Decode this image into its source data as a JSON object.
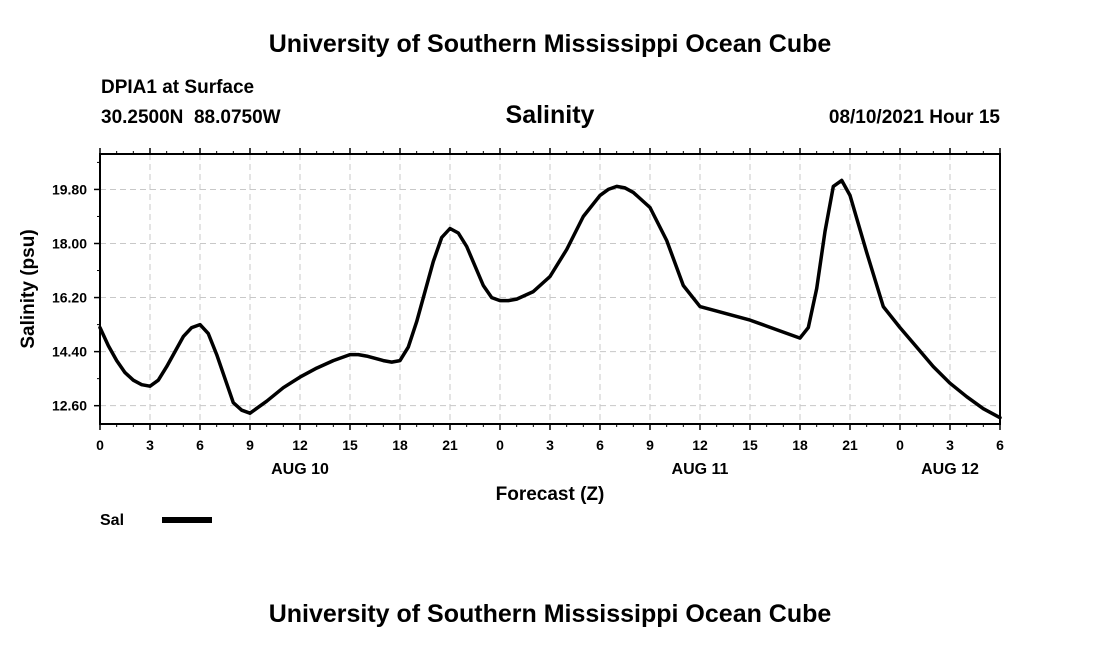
{
  "header": {
    "title": "University of Southern Mississippi Ocean Cube",
    "station": "DPIA1 at Surface",
    "coords": "30.2500N  88.0750W",
    "run_time": "08/10/2021 Hour 15"
  },
  "footer": {
    "title": "University of Southern Mississippi Ocean Cube"
  },
  "chart_data": {
    "type": "line",
    "title": "Salinity",
    "xlabel": "Forecast (Z)",
    "ylabel": "Salinity (psu)",
    "x_unit": "hours from 00Z AUG 10",
    "xlim": [
      0,
      54
    ],
    "ylim": [
      11.99,
      20.98
    ],
    "y_ticks": [
      12.6,
      14.4,
      16.2,
      18.0,
      19.8
    ],
    "y_tick_labels": [
      "12.60",
      "14.40",
      "16.20",
      "18.00",
      "19.80"
    ],
    "x_ticks": [
      0,
      3,
      6,
      9,
      12,
      15,
      18,
      21,
      24,
      27,
      30,
      33,
      36,
      39,
      42,
      45,
      48,
      51,
      54
    ],
    "x_tick_labels": [
      "0",
      "3",
      "6",
      "9",
      "12",
      "15",
      "18",
      "21",
      "0",
      "3",
      "6",
      "9",
      "12",
      "15",
      "18",
      "21",
      "0",
      "3",
      "6"
    ],
    "day_labels": [
      {
        "x": 12,
        "label": "AUG 10"
      },
      {
        "x": 36,
        "label": "AUG 11"
      },
      {
        "x": 51,
        "label": "AUG 12"
      }
    ],
    "grid": true,
    "line_color": "#000000",
    "series": [
      {
        "name": "Sal",
        "x": [
          0,
          0.5,
          1,
          1.5,
          2,
          2.5,
          3,
          3.5,
          4,
          5,
          5.5,
          6,
          6.5,
          7,
          8,
          8.5,
          9,
          10,
          11,
          12,
          13,
          14,
          15,
          15.5,
          16,
          17,
          17.5,
          18,
          18.5,
          19,
          20,
          20.5,
          21,
          21.5,
          22,
          23,
          23.5,
          24,
          24.5,
          25,
          26,
          27,
          28,
          29,
          30,
          30.5,
          31,
          31.5,
          32,
          33,
          34,
          35,
          36,
          37,
          38,
          39,
          40,
          41,
          42,
          42.5,
          43,
          43.5,
          44,
          44.5,
          45,
          46,
          47,
          48,
          49,
          50,
          51,
          52,
          53,
          54
        ],
        "y": [
          15.2,
          14.6,
          14.1,
          13.7,
          13.45,
          13.3,
          13.25,
          13.45,
          13.9,
          14.9,
          15.2,
          15.3,
          15.0,
          14.3,
          12.7,
          12.45,
          12.35,
          12.75,
          13.2,
          13.55,
          13.85,
          14.1,
          14.3,
          14.3,
          14.25,
          14.1,
          14.05,
          14.1,
          14.55,
          15.4,
          17.4,
          18.2,
          18.5,
          18.35,
          17.9,
          16.6,
          16.2,
          16.1,
          16.1,
          16.15,
          16.4,
          16.9,
          17.8,
          18.9,
          19.6,
          19.8,
          19.9,
          19.85,
          19.7,
          19.2,
          18.1,
          16.6,
          15.9,
          15.75,
          15.6,
          15.45,
          15.25,
          15.05,
          14.85,
          15.2,
          16.5,
          18.4,
          19.9,
          20.1,
          19.6,
          17.7,
          15.9,
          15.2,
          14.55,
          13.9,
          13.35,
          12.9,
          12.5,
          12.2
        ]
      }
    ],
    "legend": {
      "position": "bottom-left",
      "label": "Sal"
    }
  }
}
